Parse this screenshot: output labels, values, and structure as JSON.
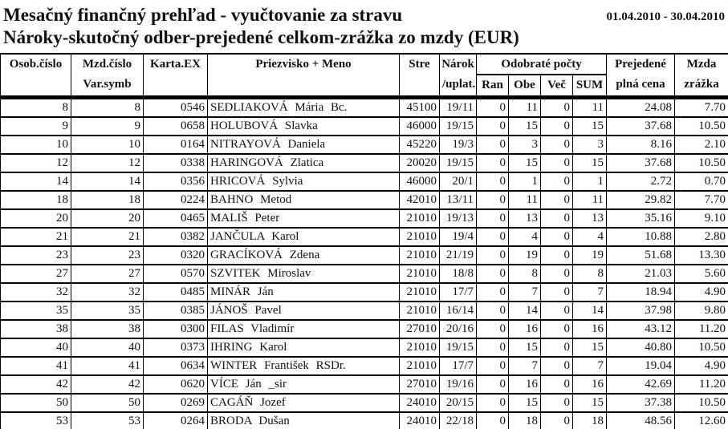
{
  "report": {
    "title": "Mesačný finančný prehľad - vyučtovanie za stravu",
    "date_range": "01.04.2010 - 30.04.2010",
    "subtitle": "Nároky-skutočný odber-prejedené celkom-zrážka zo mzdy  (EUR)"
  },
  "table": {
    "headers": {
      "osob_cislo": "Osob.číslo",
      "mzd_cislo": "Mzd.číslo",
      "var_symb": "Var.symb",
      "karta_ex": "Karta.EX",
      "priezvisko_meno": "Priezvisko + Meno",
      "stre": "Stre",
      "narok": "Nárok",
      "uplat": "/uplat.",
      "odobrate_pocty": "Odobraté počty",
      "ran": "Ran",
      "obe": "Obe",
      "vec": "Več",
      "sum": "SUM",
      "prejedene": "Prejedené",
      "plna_cena": "plná cena",
      "mzda": "Mzda",
      "zrazka": "zrážka"
    },
    "column_keys": [
      "osob-cislo",
      "mzd-cislo-var-symb",
      "karta-ex",
      "priezvisko-meno",
      "stre",
      "narok-uplat",
      "ran",
      "obe",
      "vec",
      "sum",
      "prejedene-plna-cena",
      "mzda-zrazka"
    ],
    "rows": [
      [
        "8",
        "8",
        "0546",
        "SEDLIAKOVÁ Mária Bc.",
        "45100",
        "19/11",
        "0",
        "11",
        "0",
        "11",
        "24.08",
        "7.70"
      ],
      [
        "9",
        "9",
        "0658",
        "HOLUBOVÁ Slavka",
        "46000",
        "19/15",
        "0",
        "15",
        "0",
        "15",
        "37.68",
        "10.50"
      ],
      [
        "10",
        "10",
        "0164",
        "NITRAYOVÁ Daniela",
        "45220",
        "19/3",
        "0",
        "3",
        "0",
        "3",
        "8.16",
        "2.10"
      ],
      [
        "12",
        "12",
        "0338",
        "HARINGOVÁ Zlatica",
        "20020",
        "19/15",
        "0",
        "15",
        "0",
        "15",
        "37.68",
        "10.50"
      ],
      [
        "14",
        "14",
        "0356",
        "HRICOVÁ Sylvia",
        "46000",
        "20/1",
        "0",
        "1",
        "0",
        "1",
        "2.72",
        "0.70"
      ],
      [
        "18",
        "18",
        "0224",
        "BAHNO Metod",
        "42010",
        "13/11",
        "0",
        "11",
        "0",
        "11",
        "29.82",
        "7.70"
      ],
      [
        "20",
        "20",
        "0465",
        "MALIŠ Peter",
        "21010",
        "19/13",
        "0",
        "13",
        "0",
        "13",
        "35.16",
        "9.10"
      ],
      [
        "21",
        "21",
        "0382",
        "JANČULA Karol",
        "21010",
        "19/4",
        "0",
        "4",
        "0",
        "4",
        "10.88",
        "2.80"
      ],
      [
        "23",
        "23",
        "0320",
        "GRACÍKOVÁ Zdena",
        "21010",
        "21/19",
        "0",
        "19",
        "0",
        "19",
        "51.68",
        "13.30"
      ],
      [
        "27",
        "27",
        "0570",
        "SZVITEK Miroslav",
        "21010",
        "18/8",
        "0",
        "8",
        "0",
        "8",
        "21.03",
        "5.60"
      ],
      [
        "32",
        "32",
        "0485",
        "MINÁR Ján",
        "21010",
        "17/7",
        "0",
        "7",
        "0",
        "7",
        "18.94",
        "4.90"
      ],
      [
        "35",
        "35",
        "0385",
        "JÁNOŠ Pavel",
        "21010",
        "16/14",
        "0",
        "14",
        "0",
        "14",
        "37.98",
        "9.80"
      ],
      [
        "38",
        "38",
        "0300",
        "FILAS Vladimír",
        "27010",
        "20/16",
        "0",
        "16",
        "0",
        "16",
        "43.12",
        "11.20"
      ],
      [
        "40",
        "40",
        "0373",
        "IHRING Karol",
        "21010",
        "19/15",
        "0",
        "15",
        "0",
        "15",
        "40.80",
        "10.50"
      ],
      [
        "41",
        "41",
        "0634",
        "WINTER František RSDr.",
        "21010",
        "17/7",
        "0",
        "7",
        "0",
        "7",
        "19.04",
        "4.90"
      ],
      [
        "42",
        "42",
        "0620",
        "VÍCE Ján _sir",
        "27010",
        "19/16",
        "0",
        "16",
        "0",
        "16",
        "42.69",
        "11.20"
      ],
      [
        "50",
        "50",
        "0269",
        "CAGÁŇ Jozef",
        "24010",
        "20/15",
        "0",
        "15",
        "0",
        "15",
        "37.38",
        "10.50"
      ],
      [
        "53",
        "53",
        "0264",
        "BRODA Dušan",
        "24010",
        "22/18",
        "0",
        "18",
        "0",
        "18",
        "48.56",
        "12.60"
      ]
    ]
  }
}
